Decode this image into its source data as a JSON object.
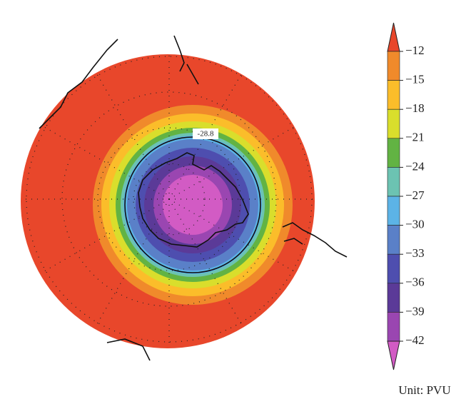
{
  "map": {
    "contour": {
      "value": -28.8
    },
    "colorbar": {
      "ticks": [
        {
          "value": -12,
          "label": "−12"
        },
        {
          "value": -15,
          "label": "−15"
        },
        {
          "value": -18,
          "label": "−18"
        },
        {
          "value": -21,
          "label": "−21"
        },
        {
          "value": -24,
          "label": "−24"
        },
        {
          "value": -27,
          "label": "−27"
        },
        {
          "value": -30,
          "label": "−30"
        },
        {
          "value": -33,
          "label": "−33"
        },
        {
          "value": -36,
          "label": "−36"
        },
        {
          "value": -39,
          "label": "−39"
        },
        {
          "value": -42,
          "label": "−42"
        }
      ],
      "colors": [
        "#e8472b",
        "#f08a2b",
        "#fbbd2a",
        "#d9de2c",
        "#62b343",
        "#6cc3b2",
        "#5cb3e6",
        "#5a80c8",
        "#4e4eaf",
        "#5b3a98",
        "#9a46b1",
        "#d25bc4"
      ],
      "unit_label": "Unit: PVU"
    }
  }
}
